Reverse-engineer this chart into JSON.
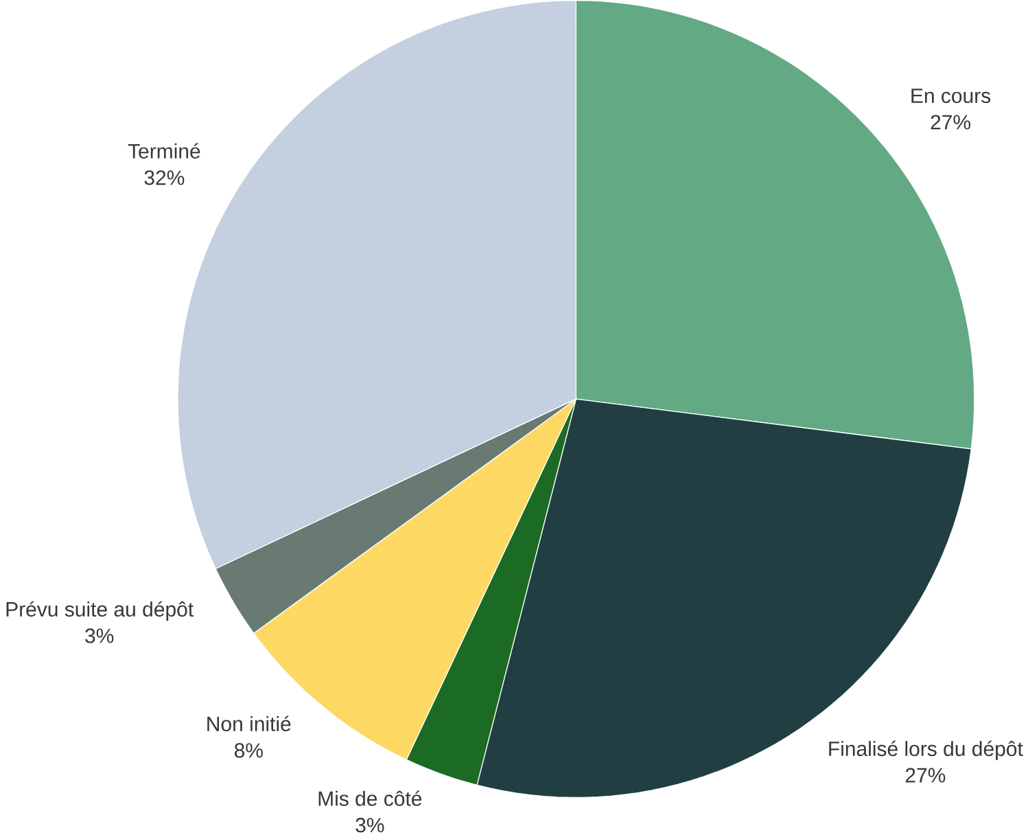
{
  "chart_data": {
    "type": "pie",
    "categories": [
      "En cours",
      "Finalisé lors du dépôt",
      "Mis de côté",
      "Non initié",
      "Prévu suite au dépôt",
      "Terminé"
    ],
    "values": [
      27,
      27,
      3,
      8,
      3,
      32
    ],
    "value_labels": [
      "27%",
      "27%",
      "3%",
      "8%",
      "3%",
      "32%"
    ],
    "colors": [
      "#62a984",
      "#213f42",
      "#1c6b24",
      "#fdd963",
      "#687a72",
      "#c4cfe0"
    ]
  }
}
